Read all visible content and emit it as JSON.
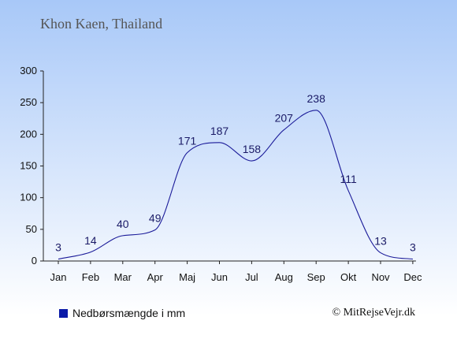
{
  "header": {
    "title": "Khon Kaen, Thailand"
  },
  "legend": {
    "label": "Nedbørsmængde i mm",
    "color": "#0a1aa8"
  },
  "credit": {
    "text": "© MitRejseVejr.dk"
  },
  "colors": {
    "sky_top": "#a8c8f8",
    "sky_bottom": "#ffffff",
    "line": "#1a1a99",
    "axis": "#222222"
  },
  "chart_data": {
    "type": "line",
    "title": "Khon Kaen, Thailand",
    "xlabel": "",
    "ylabel": "",
    "categories": [
      "Jan",
      "Feb",
      "Mar",
      "Apr",
      "Maj",
      "Jun",
      "Jul",
      "Aug",
      "Sep",
      "Okt",
      "Nov",
      "Dec"
    ],
    "series": [
      {
        "name": "Nedbørsmængde i mm",
        "values": [
          3,
          14,
          40,
          49,
          171,
          187,
          158,
          207,
          238,
          111,
          13,
          3
        ]
      }
    ],
    "ylim": [
      0,
      300
    ],
    "yticks": [
      0,
      50,
      100,
      150,
      200,
      250,
      300
    ],
    "grid": false,
    "legend_position": "bottom-left"
  }
}
